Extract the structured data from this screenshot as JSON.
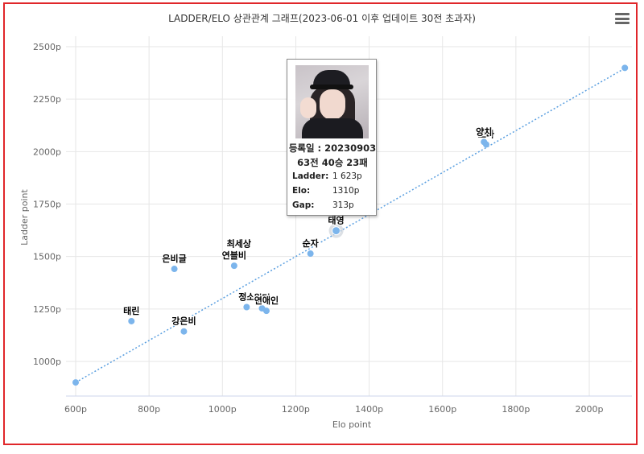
{
  "chart_data": {
    "type": "scatter",
    "title": "LADDER/ELO 상관관계 그래프(2023-06-01 이후 업데이트 30전 초과자)",
    "xlabel": "Elo point",
    "ylabel": "Ladder point",
    "xlim": [
      600,
      2100
    ],
    "ylim": [
      850,
      2550
    ],
    "x_ticks": [
      "600p",
      "800p",
      "1000p",
      "1200p",
      "1400p",
      "1600p",
      "1800p",
      "2000p"
    ],
    "y_ticks": [
      "1000p",
      "1250p",
      "1500p",
      "1750p",
      "2000p",
      "2250p",
      "2500p"
    ],
    "grid": true,
    "legend": "none",
    "colors": {
      "point": "#7cb5ec",
      "trend": "#5a9fe0",
      "frame": "#e0262a"
    },
    "trend_line": {
      "start": [
        600,
        900
      ],
      "end": [
        2100,
        2400
      ]
    },
    "points": [
      {
        "name": "",
        "x": 600,
        "y": 900
      },
      {
        "name": "태린",
        "x": 752,
        "y": 1192
      },
      {
        "name": "은비글",
        "x": 869,
        "y": 1441
      },
      {
        "name": "강은비",
        "x": 895,
        "y": 1143
      },
      {
        "name": "최세상",
        "x": 1045,
        "y": 1513
      },
      {
        "name": "연블비",
        "x": 1032,
        "y": 1456
      },
      {
        "name": "정소",
        "x": 1066,
        "y": 1259
      },
      {
        "name": "월터",
        "x": 1108,
        "y": 1253
      },
      {
        "name": "연애인",
        "x": 1120,
        "y": 1241
      },
      {
        "name": "순자",
        "x": 1240,
        "y": 1514
      },
      {
        "name": "태영",
        "x": 1310,
        "y": 1623,
        "highlighted": true
      },
      {
        "name": "보라",
        "x": 1719,
        "y": 2034
      },
      {
        "name": "양치",
        "x": 1713,
        "y": 2046
      },
      {
        "name": "",
        "x": 2097,
        "y": 2399
      }
    ]
  },
  "tooltip": {
    "photo_icon": "profile-photo",
    "date": "등록일 : 20230903",
    "record": "63전 40승 23패",
    "rows": [
      {
        "label": "Ladder:",
        "value": "1 623p"
      },
      {
        "label": "Elo:",
        "value": "1310p"
      },
      {
        "label": "Gap:",
        "value": "313p"
      }
    ]
  },
  "menu": {
    "icon": "hamburger-menu-icon"
  }
}
